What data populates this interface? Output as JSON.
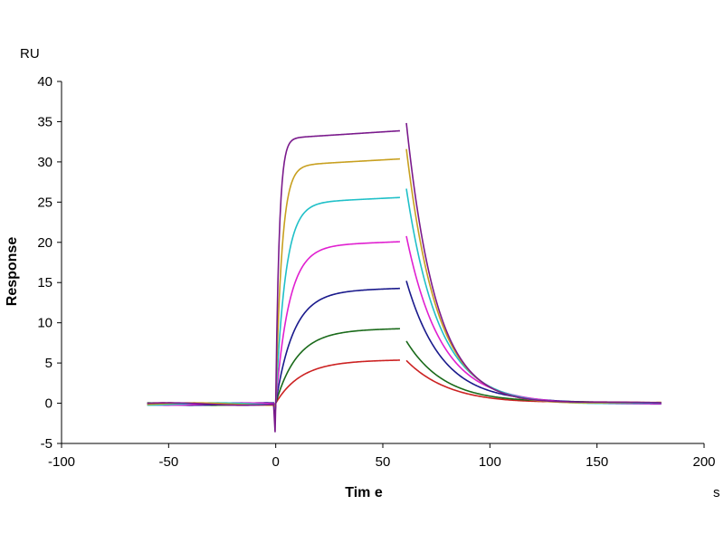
{
  "chart_data": {
    "type": "line",
    "title": "",
    "xlabel": "Tim e",
    "ylabel": "Response",
    "x_unit": "s",
    "y_unit": "RU",
    "xlim": [
      -100,
      200
    ],
    "ylim": [
      -5,
      40
    ],
    "x_ticks": [
      -100,
      -50,
      0,
      50,
      100,
      150,
      200
    ],
    "y_ticks": [
      -5,
      0,
      5,
      10,
      15,
      20,
      25,
      30,
      35,
      40
    ],
    "x_tick_labels": [
      "-100",
      "-50",
      "0",
      "50",
      "100",
      "150",
      "200"
    ],
    "y_tick_labels": [
      "-5",
      "0",
      "5",
      "10",
      "15",
      "20",
      "25",
      "30",
      "35",
      "40"
    ],
    "grid": false,
    "legend": "none",
    "series": [
      {
        "color": "#cc2222",
        "plateau": 5.4,
        "k_on": 0.085,
        "dissoc_start": 5.3,
        "k_off": 0.05,
        "start_spike": -1.5
      },
      {
        "color": "#1a6a1a",
        "plateau": 9.3,
        "k_on": 0.1,
        "dissoc_start": 7.8,
        "k_off": 0.055,
        "start_spike": -1.2
      },
      {
        "color": "#1a1a8c",
        "plateau": 14.3,
        "k_on": 0.12,
        "dissoc_start": 15.3,
        "k_off": 0.06,
        "start_spike": -1.0
      },
      {
        "color": "#e020d0",
        "plateau": 20.1,
        "k_on": 0.16,
        "dissoc_start": 20.8,
        "k_off": 0.062,
        "start_spike": -0.8
      },
      {
        "color": "#20c0c8",
        "plateau": 25.6,
        "k_on": 0.22,
        "dissoc_start": 26.6,
        "k_off": 0.066,
        "start_spike": -0.6
      },
      {
        "color": "#c8a020",
        "plateau": 30.4,
        "k_on": 0.35,
        "dissoc_start": 31.5,
        "k_off": 0.07,
        "start_spike": -0.4
      },
      {
        "color": "#7a1a8c",
        "plateau": 33.9,
        "k_on": 0.6,
        "dissoc_start": 34.8,
        "k_off": 0.072,
        "start_spike": -3.6
      }
    ],
    "phases": {
      "baseline_start": -60,
      "association_start": 0,
      "dissociation_start": 60,
      "end": 180
    }
  }
}
